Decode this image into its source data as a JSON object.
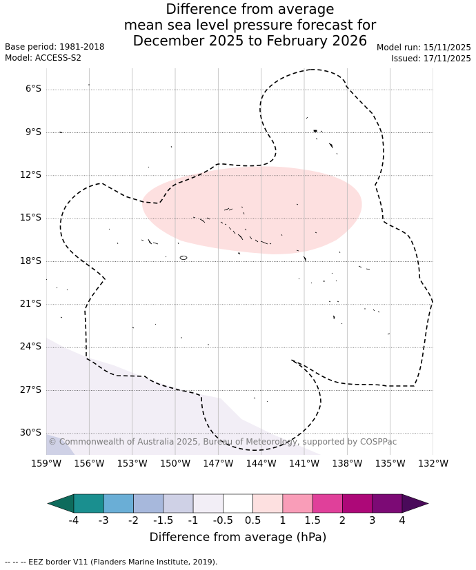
{
  "title_lines": [
    "Difference from average",
    "mean sea level pressure forecast for",
    "December 2025 to February 2026"
  ],
  "base_period": "Base period: 1981-2018",
  "model": "Model: ACCESS-S2",
  "model_run": "Model run: 15/11/2025",
  "issued": "Issued: 17/11/2025",
  "copyright": "© Commonwealth of Australia 2025, Bureau of Meteorology, supported by COSPPac",
  "map": {
    "lon_range": [
      -159,
      -132
    ],
    "lat_range": [
      -31.5,
      -4.5
    ],
    "lat_ticks": [
      {
        "value": -6,
        "label": "6°S"
      },
      {
        "value": -9,
        "label": "9°S"
      },
      {
        "value": -12,
        "label": "12°S"
      },
      {
        "value": -15,
        "label": "15°S"
      },
      {
        "value": -18,
        "label": "18°S"
      },
      {
        "value": -21,
        "label": "21°S"
      },
      {
        "value": -24,
        "label": "24°S"
      },
      {
        "value": -27,
        "label": "27°S"
      },
      {
        "value": -30,
        "label": "30°S"
      }
    ],
    "lon_ticks": [
      {
        "value": -159,
        "label": "159°W"
      },
      {
        "value": -156,
        "label": "156°W"
      },
      {
        "value": -153,
        "label": "153°W"
      },
      {
        "value": -150,
        "label": "150°W"
      },
      {
        "value": -147,
        "label": "147°W"
      },
      {
        "value": -144,
        "label": "144°W"
      },
      {
        "value": -141,
        "label": "141°W"
      },
      {
        "value": -138,
        "label": "138°W"
      },
      {
        "value": -135,
        "label": "135°W"
      },
      {
        "value": -132,
        "label": "132°W"
      }
    ]
  },
  "legend": {
    "label": "Difference from average (hPa)",
    "ticks": [
      "-4",
      "-3",
      "-2",
      "-1.5",
      "-1",
      "-0.5",
      "0.5",
      "1",
      "1.5",
      "2",
      "3",
      "4"
    ],
    "colors": [
      "#1a8f8f",
      "#6aaed6",
      "#a7b8dc",
      "#cfd1e6",
      "#f2eef6",
      "#ffffff",
      "#fde0e0",
      "#f99db8",
      "#e0409a",
      "#ad0878",
      "#7c0a75"
    ],
    "extend_low_color": "#0e6b5c",
    "extend_high_color": "#4a0a5a"
  },
  "field_colors": {
    "positive_0_5": "#fde0e0",
    "negative_0_5": "#f2eef6",
    "negative_1": "#cfd1e6"
  },
  "footer": "-- -- -- EEZ border V11 (Flanders Marine Institute, 2019)."
}
